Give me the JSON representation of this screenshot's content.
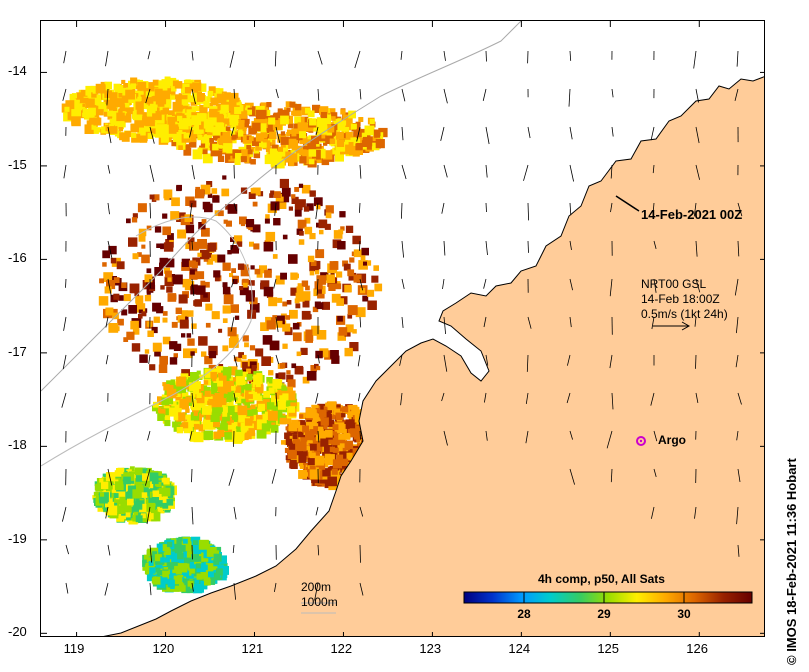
{
  "map": {
    "region": "North-west Australian shelf (Kimberley coast)",
    "lon_ticks": [
      "119",
      "120",
      "121",
      "122",
      "123",
      "124",
      "125",
      "126"
    ],
    "lat_ticks": [
      "-14",
      "-15",
      "-16",
      "-17",
      "-18",
      "-19",
      "-20"
    ],
    "lon_range": [
      118.6,
      126.75
    ],
    "lat_range": [
      -20.05,
      -13.45
    ],
    "colors": {
      "land": "#ffcc99",
      "ocean": "#ffffff",
      "coast": "#000000",
      "isobath": "#aaaaaa"
    }
  },
  "annotations": {
    "date_label": "14-Feb-2021 00Z",
    "current_product": "NRT00 GSL",
    "current_time": "14-Feb 18:00Z",
    "vector_scale": "0.5m/s (1kt 24h)",
    "argo_label": "Argo",
    "isobath_200": "200m",
    "isobath_1000": "1000m"
  },
  "colorbar": {
    "title": "4h comp, p50, All Sats",
    "ticks": [
      "28",
      "29",
      "30"
    ],
    "tick_values": [
      28,
      29,
      30
    ],
    "range": [
      27.25,
      30.85
    ],
    "stops": [
      "#00007f",
      "#0033cc",
      "#0099ff",
      "#00cccc",
      "#33cc66",
      "#99dd00",
      "#ffee00",
      "#ffaa00",
      "#dd6600",
      "#992200",
      "#660000"
    ]
  },
  "credit": "© IMOS 18-Feb-2021 11:36 Hobart"
}
